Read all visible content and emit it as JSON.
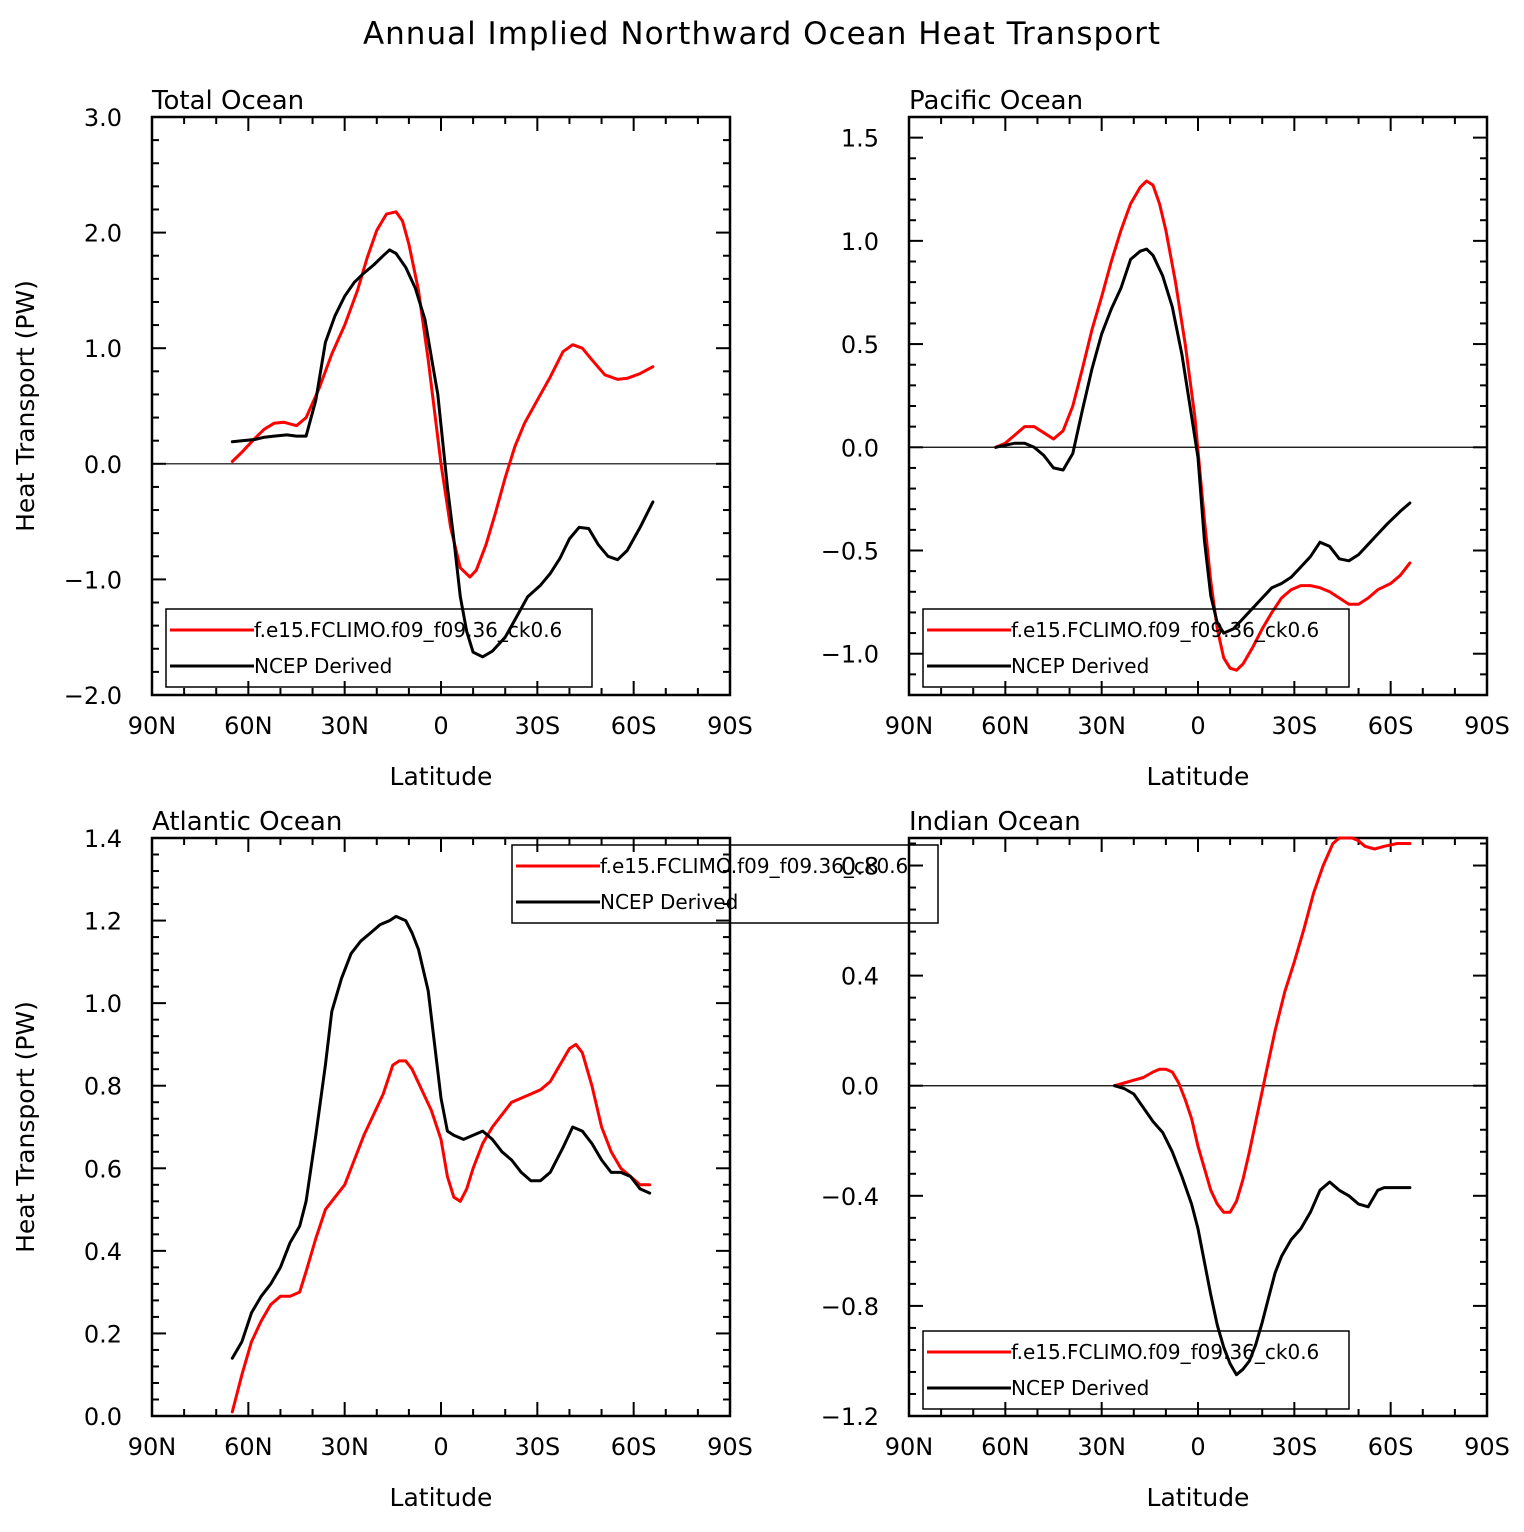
{
  "title": "Annual Implied Northward Ocean Heat Transport",
  "colors": {
    "model": "#ff0000",
    "obs": "#000000"
  },
  "chart_data": [
    {
      "type": "line",
      "title": "Total Ocean",
      "xlabel": "Latitude",
      "ylabel": "Heat Transport (PW)",
      "xlim": [
        90,
        -90
      ],
      "xticks": [
        90,
        60,
        30,
        0,
        -30,
        -60,
        -90
      ],
      "xticklabels": [
        "90N",
        "60N",
        "30N",
        "0",
        "30S",
        "60S",
        "90S"
      ],
      "ylim": [
        -2.0,
        3.0
      ],
      "yticks": [
        -2,
        -1,
        0,
        1,
        2,
        3
      ],
      "yticklabels": [
        "−2.0",
        "−1.0",
        "0.0",
        "1.0",
        "2.0",
        "3.0"
      ],
      "zero_line": true,
      "legend": {
        "position": "bottom-left",
        "entries": [
          "f.e15.FCLIMO.f09_f09.36_ck0.6",
          "NCEP Derived"
        ]
      },
      "series": [
        {
          "name": "f.e15.FCLIMO.f09_f09.36_ck0.6",
          "color": "#ff0000",
          "x": [
            65,
            62,
            58,
            55,
            52,
            49,
            45,
            42,
            38,
            34,
            30,
            26,
            23,
            20,
            17,
            14,
            12,
            10,
            7,
            4,
            0,
            -3,
            -6,
            -9,
            -11,
            -14,
            -17,
            -20,
            -23,
            -26,
            -30,
            -34,
            -38,
            -41,
            -44,
            -47,
            -51,
            -55,
            -58,
            -62,
            -66
          ],
          "y": [
            0.02,
            0.1,
            0.22,
            0.3,
            0.35,
            0.36,
            0.33,
            0.4,
            0.65,
            0.95,
            1.2,
            1.5,
            1.78,
            2.02,
            2.16,
            2.18,
            2.1,
            1.9,
            1.5,
            0.9,
            0.0,
            -0.55,
            -0.9,
            -0.98,
            -0.92,
            -0.7,
            -0.42,
            -0.12,
            0.15,
            0.35,
            0.55,
            0.75,
            0.97,
            1.03,
            1.0,
            0.9,
            0.77,
            0.73,
            0.74,
            0.78,
            0.84
          ]
        },
        {
          "name": "NCEP Derived",
          "color": "#000000",
          "x": [
            65,
            62,
            58,
            55,
            52,
            48,
            45,
            42,
            39,
            36,
            33,
            30,
            27,
            24,
            21,
            18,
            16,
            14,
            11,
            8,
            5,
            3,
            1,
            -2,
            -4,
            -6,
            -8,
            -10,
            -13,
            -16,
            -20,
            -24,
            -27,
            -31,
            -34,
            -37,
            -40,
            -43,
            -46,
            -49,
            -52,
            -55,
            -58,
            -62,
            -66
          ],
          "y": [
            0.19,
            0.2,
            0.21,
            0.23,
            0.24,
            0.25,
            0.24,
            0.24,
            0.55,
            1.05,
            1.28,
            1.45,
            1.57,
            1.65,
            1.72,
            1.8,
            1.85,
            1.82,
            1.7,
            1.52,
            1.25,
            0.92,
            0.6,
            -0.2,
            -0.65,
            -1.15,
            -1.45,
            -1.63,
            -1.67,
            -1.62,
            -1.5,
            -1.3,
            -1.15,
            -1.05,
            -0.95,
            -0.82,
            -0.65,
            -0.55,
            -0.56,
            -0.7,
            -0.8,
            -0.83,
            -0.75,
            -0.55,
            -0.33
          ]
        }
      ]
    },
    {
      "type": "line",
      "title": "Pacific Ocean",
      "xlabel": "Latitude",
      "ylabel": "",
      "xlim": [
        90,
        -90
      ],
      "xticks": [
        90,
        60,
        30,
        0,
        -30,
        -60,
        -90
      ],
      "xticklabels": [
        "90N",
        "60N",
        "30N",
        "0",
        "30S",
        "60S",
        "90S"
      ],
      "ylim": [
        -1.2,
        1.6
      ],
      "yticks": [
        -1.0,
        -0.5,
        0.0,
        0.5,
        1.0,
        1.5
      ],
      "yticklabels": [
        "−1.0",
        "−0.5",
        "0.0",
        "0.5",
        "1.0",
        "1.5"
      ],
      "zero_line": true,
      "legend": {
        "position": "bottom-left",
        "entries": [
          "f.e15.FCLIMO.f09_f09.36_ck0.6",
          "NCEP Derived"
        ]
      },
      "series": [
        {
          "name": "f.e15.FCLIMO.f09_f09.36_ck0.6",
          "color": "#ff0000",
          "x": [
            63,
            60,
            57,
            54,
            51,
            48,
            45,
            42,
            39,
            36,
            33,
            30,
            27,
            24,
            21,
            18,
            16,
            14,
            12,
            10,
            7,
            4,
            1,
            -2,
            -4,
            -6,
            -8,
            -10,
            -12,
            -14,
            -17,
            -20,
            -23,
            -26,
            -29,
            -32,
            -35,
            -38,
            -41,
            -44,
            -47,
            -50,
            -53,
            -56,
            -60,
            -63,
            -66
          ],
          "y": [
            0.0,
            0.02,
            0.06,
            0.1,
            0.1,
            0.07,
            0.04,
            0.08,
            0.2,
            0.38,
            0.57,
            0.73,
            0.9,
            1.05,
            1.18,
            1.26,
            1.29,
            1.27,
            1.18,
            1.05,
            0.8,
            0.5,
            0.15,
            -0.35,
            -0.65,
            -0.88,
            -1.02,
            -1.07,
            -1.08,
            -1.05,
            -0.97,
            -0.88,
            -0.8,
            -0.73,
            -0.69,
            -0.67,
            -0.67,
            -0.68,
            -0.7,
            -0.73,
            -0.76,
            -0.76,
            -0.73,
            -0.69,
            -0.66,
            -0.62,
            -0.56
          ]
        },
        {
          "name": "NCEP Derived",
          "color": "#000000",
          "x": [
            63,
            60,
            57,
            54,
            51,
            48,
            45,
            42,
            39,
            36,
            33,
            30,
            27,
            24,
            21,
            18,
            16,
            14,
            11,
            8,
            5,
            2,
            0,
            -2,
            -4,
            -6,
            -8,
            -11,
            -14,
            -17,
            -20,
            -23,
            -26,
            -29,
            -32,
            -35,
            -38,
            -41,
            -44,
            -47,
            -50,
            -53,
            -56,
            -59,
            -63,
            -66
          ],
          "y": [
            0.0,
            0.01,
            0.02,
            0.02,
            0.0,
            -0.04,
            -0.1,
            -0.11,
            -0.03,
            0.18,
            0.38,
            0.55,
            0.67,
            0.77,
            0.91,
            0.95,
            0.96,
            0.93,
            0.83,
            0.68,
            0.45,
            0.15,
            -0.05,
            -0.45,
            -0.72,
            -0.85,
            -0.9,
            -0.88,
            -0.83,
            -0.78,
            -0.73,
            -0.68,
            -0.66,
            -0.63,
            -0.58,
            -0.53,
            -0.46,
            -0.48,
            -0.54,
            -0.55,
            -0.52,
            -0.47,
            -0.42,
            -0.37,
            -0.31,
            -0.27
          ]
        }
      ]
    },
    {
      "type": "line",
      "title": "Atlantic Ocean",
      "xlabel": "Latitude",
      "ylabel": "Heat Transport (PW)",
      "xlim": [
        90,
        -90
      ],
      "xticks": [
        90,
        60,
        30,
        0,
        -30,
        -60,
        -90
      ],
      "xticklabels": [
        "90N",
        "60N",
        "30N",
        "0",
        "30S",
        "60S",
        "90S"
      ],
      "ylim": [
        0.0,
        1.4
      ],
      "yticks": [
        0.0,
        0.2,
        0.4,
        0.6,
        0.8,
        1.0,
        1.2,
        1.4
      ],
      "yticklabels": [
        "0.0",
        "0.2",
        "0.4",
        "0.6",
        "0.8",
        "1.0",
        "1.2",
        "1.4"
      ],
      "zero_line": false,
      "legend": {
        "position": "top-center",
        "entries": [
          "f.e15.FCLIMO.f09_f09.36_ck0.6",
          "NCEP Derived"
        ]
      },
      "series": [
        {
          "name": "f.e15.FCLIMO.f09_f09.36_ck0.6",
          "color": "#ff0000",
          "x": [
            65,
            62,
            59,
            56,
            53,
            50,
            47,
            44,
            42,
            39,
            36,
            33,
            30,
            27,
            24,
            21,
            18,
            15,
            13,
            11,
            9,
            6,
            3,
            0,
            -2,
            -4,
            -6,
            -8,
            -10,
            -13,
            -16,
            -19,
            -22,
            -25,
            -28,
            -31,
            -34,
            -37,
            -40,
            -42,
            -44,
            -47,
            -50,
            -53,
            -56,
            -59,
            -62,
            -65
          ],
          "y": [
            0.01,
            0.1,
            0.18,
            0.23,
            0.27,
            0.29,
            0.29,
            0.3,
            0.35,
            0.43,
            0.5,
            0.53,
            0.56,
            0.62,
            0.68,
            0.73,
            0.78,
            0.85,
            0.86,
            0.86,
            0.84,
            0.79,
            0.74,
            0.67,
            0.58,
            0.53,
            0.52,
            0.55,
            0.6,
            0.66,
            0.7,
            0.73,
            0.76,
            0.77,
            0.78,
            0.79,
            0.81,
            0.85,
            0.89,
            0.9,
            0.88,
            0.8,
            0.7,
            0.64,
            0.6,
            0.58,
            0.56,
            0.56
          ]
        },
        {
          "name": "NCEP Derived",
          "color": "#000000",
          "x": [
            65,
            62,
            59,
            56,
            53,
            50,
            47,
            44,
            42,
            39,
            36,
            34,
            31,
            28,
            25,
            22,
            19,
            16,
            14,
            11,
            9,
            7,
            4,
            2,
            0,
            -2,
            -4,
            -7,
            -10,
            -13,
            -16,
            -19,
            -22,
            -25,
            -28,
            -31,
            -34,
            -38,
            -41,
            -44,
            -47,
            -50,
            -53,
            -56,
            -59,
            -62,
            -65
          ],
          "y": [
            0.14,
            0.18,
            0.25,
            0.29,
            0.32,
            0.36,
            0.42,
            0.46,
            0.52,
            0.68,
            0.85,
            0.98,
            1.06,
            1.12,
            1.15,
            1.17,
            1.19,
            1.2,
            1.21,
            1.2,
            1.17,
            1.13,
            1.03,
            0.9,
            0.77,
            0.69,
            0.68,
            0.67,
            0.68,
            0.69,
            0.67,
            0.64,
            0.62,
            0.59,
            0.57,
            0.57,
            0.59,
            0.65,
            0.7,
            0.69,
            0.66,
            0.62,
            0.59,
            0.59,
            0.58,
            0.55,
            0.54
          ]
        }
      ]
    },
    {
      "type": "line",
      "title": "Indian Ocean",
      "xlabel": "Latitude",
      "ylabel": "",
      "xlim": [
        90,
        -90
      ],
      "xticks": [
        90,
        60,
        30,
        0,
        -30,
        -60,
        -90
      ],
      "xticklabels": [
        "90N",
        "60N",
        "30N",
        "0",
        "30S",
        "60S",
        "90S"
      ],
      "ylim": [
        -1.2,
        0.9
      ],
      "yticks": [
        -1.2,
        -0.8,
        -0.4,
        0.0,
        0.4,
        0.8
      ],
      "yticklabels": [
        "−1.2",
        "−0.8",
        "−0.4",
        "0.0",
        "0.4",
        "0.8"
      ],
      "zero_line": true,
      "legend": {
        "position": "bottom-left",
        "entries": [
          "f.e15.FCLIMO.f09_f09.36_ck0.6",
          "NCEP Derived"
        ]
      },
      "series": [
        {
          "name": "f.e15.FCLIMO.f09_f09.36_ck0.6",
          "color": "#ff0000",
          "x": [
            26,
            23,
            20,
            17,
            14,
            12,
            10,
            8,
            6,
            4,
            2,
            0,
            -2,
            -4,
            -6,
            -8,
            -10,
            -12,
            -14,
            -16,
            -18,
            -20,
            -22,
            -24,
            -27,
            -30,
            -33,
            -36,
            -39,
            -42,
            -44,
            -46,
            -48,
            -50,
            -52,
            -55,
            -58,
            -62,
            -66
          ],
          "y": [
            0.0,
            0.01,
            0.02,
            0.03,
            0.05,
            0.06,
            0.06,
            0.05,
            0.01,
            -0.05,
            -0.12,
            -0.22,
            -0.3,
            -0.38,
            -0.43,
            -0.46,
            -0.46,
            -0.42,
            -0.34,
            -0.24,
            -0.13,
            -0.02,
            0.09,
            0.2,
            0.34,
            0.45,
            0.57,
            0.7,
            0.8,
            0.88,
            0.91,
            0.92,
            0.91,
            0.89,
            0.87,
            0.86,
            0.87,
            0.88,
            0.88
          ]
        },
        {
          "name": "NCEP Derived",
          "color": "#000000",
          "x": [
            26,
            23,
            20,
            17,
            14,
            11,
            8,
            5,
            2,
            0,
            -2,
            -4,
            -6,
            -8,
            -10,
            -12,
            -14,
            -16,
            -18,
            -20,
            -22,
            -24,
            -26,
            -29,
            -32,
            -35,
            -38,
            -41,
            -44,
            -47,
            -50,
            -53,
            -56,
            -58,
            -60,
            -63,
            -66
          ],
          "y": [
            0.0,
            -0.01,
            -0.03,
            -0.08,
            -0.13,
            -0.17,
            -0.24,
            -0.33,
            -0.43,
            -0.52,
            -0.64,
            -0.76,
            -0.87,
            -0.95,
            -1.01,
            -1.05,
            -1.03,
            -1.0,
            -0.94,
            -0.86,
            -0.77,
            -0.68,
            -0.62,
            -0.56,
            -0.52,
            -0.46,
            -0.38,
            -0.35,
            -0.38,
            -0.4,
            -0.43,
            -0.44,
            -0.38,
            -0.37,
            -0.37,
            -0.37,
            -0.37
          ]
        }
      ]
    }
  ]
}
